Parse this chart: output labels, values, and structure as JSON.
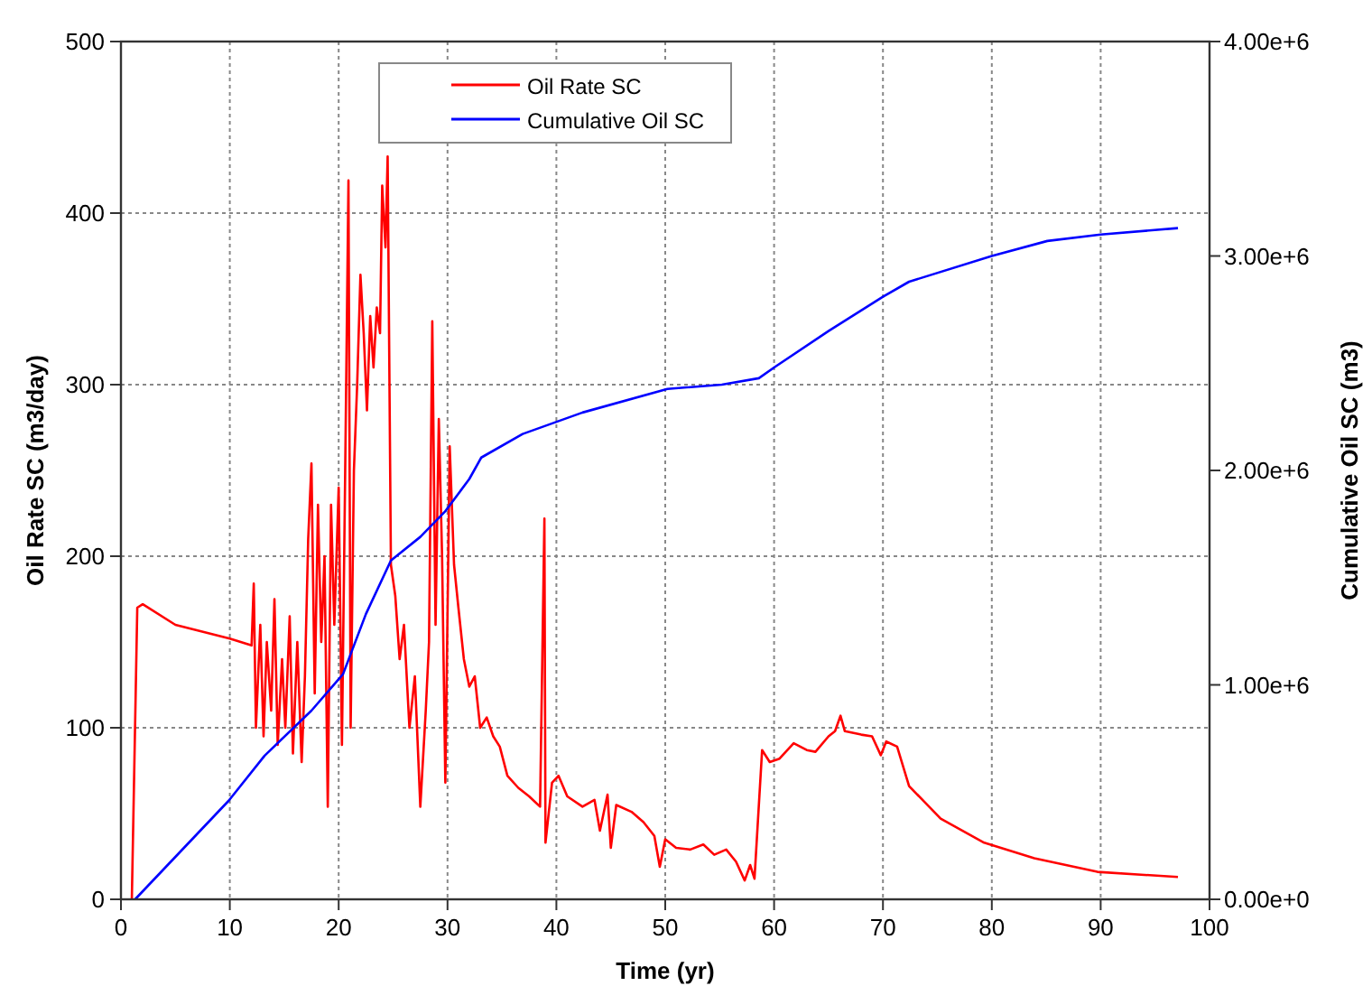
{
  "chart_data": {
    "type": "line",
    "xlabel": "Time (yr)",
    "ylabel": "Oil Rate SC (m3/day)",
    "y2label": "Cumulative Oil SC (m3)",
    "xlim": [
      0,
      100
    ],
    "xticks": [
      0,
      10,
      20,
      30,
      40,
      50,
      60,
      70,
      80,
      90,
      100
    ],
    "ylim": [
      0,
      500
    ],
    "yticks": [
      0,
      100,
      200,
      300,
      400,
      500
    ],
    "y2lim": [
      0,
      4000000
    ],
    "y2ticks": [
      {
        "value": 0,
        "label": "0.00e+0"
      },
      {
        "value": 1000000,
        "label": "1.00e+6"
      },
      {
        "value": 2000000,
        "label": "2.00e+6"
      },
      {
        "value": 3000000,
        "label": "3.00e+6"
      },
      {
        "value": 4000000,
        "label": "4.00e+6"
      }
    ],
    "grid": true,
    "legend": "top",
    "marker": "none",
    "line_style": "solid",
    "series": [
      {
        "name": "Oil Rate SC",
        "color": "#ff0000",
        "x": [
          1,
          1.5,
          2,
          5,
          10,
          12,
          12.2,
          12.4,
          12.8,
          13.1,
          13.4,
          13.8,
          14.1,
          14.4,
          14.8,
          15.1,
          15.5,
          15.8,
          16.2,
          16.6,
          16.9,
          17.2,
          17.5,
          17.8,
          18.1,
          18.4,
          18.7,
          19,
          19.3,
          19.6,
          20,
          20.3,
          20.6,
          20.9,
          21.1,
          21.4,
          21.7,
          22,
          22.3,
          22.6,
          22.9,
          23.2,
          23.5,
          23.8,
          24,
          24.3,
          24.5,
          24.8,
          25.2,
          25.6,
          26,
          26.5,
          27,
          27.5,
          28,
          28.3,
          28.6,
          28.9,
          29.2,
          29.5,
          29.8,
          30.2,
          30.6,
          31,
          31.5,
          32,
          32.5,
          33,
          33.6,
          34.2,
          34.8,
          35.5,
          36.5,
          37.5,
          38.5,
          38.9,
          39,
          39.6,
          40.2,
          41,
          42.4,
          43.5,
          44,
          44.7,
          45,
          45.5,
          46.9,
          48,
          49,
          49.5,
          50,
          51,
          52.3,
          53.5,
          54.5,
          55.6,
          56.5,
          57.3,
          57.8,
          58.2,
          58.9,
          59.6,
          60.5,
          61.8,
          63,
          63.8,
          65,
          65.6,
          66.1,
          66.5,
          68,
          69,
          69.8,
          70.3,
          71.3,
          72.4,
          75.3,
          79.3,
          83.9,
          89.7,
          97.1
        ],
        "values": [
          0,
          170,
          172,
          160,
          152,
          148,
          184,
          100,
          160,
          95,
          150,
          110,
          175,
          90,
          140,
          100,
          165,
          85,
          150,
          80,
          130,
          210,
          254,
          120,
          230,
          150,
          200,
          54,
          230,
          160,
          240,
          90,
          250,
          419,
          100,
          250,
          300,
          364,
          330,
          285,
          340,
          310,
          345,
          330,
          416,
          380,
          433,
          195,
          177,
          140,
          160,
          100,
          130,
          54,
          110,
          150,
          337,
          160,
          280,
          200,
          68,
          264,
          195,
          170,
          140,
          124,
          130,
          100,
          106,
          95,
          89,
          72,
          65,
          60,
          54,
          222,
          33,
          68,
          72,
          60,
          54,
          58,
          40,
          61,
          30,
          55,
          51,
          45,
          37,
          19,
          35,
          30,
          29,
          32,
          26,
          29,
          22,
          11,
          20,
          12,
          87,
          80,
          82,
          91,
          87,
          86,
          95,
          98,
          107,
          98,
          96,
          95,
          84,
          92,
          89,
          66,
          47,
          33,
          24,
          16,
          13
        ]
      },
      {
        "name": "Cumulative Oil SC",
        "color": "#0000ff",
        "axis": "y2",
        "x": [
          1.3,
          9.9,
          13.2,
          17.5,
          20.4,
          22.5,
          24.8,
          27.5,
          29.8,
          32,
          33.1,
          36.9,
          42.4,
          50.2,
          55.2,
          58.6,
          60,
          65,
          70,
          72.4,
          80,
          85.1,
          90,
          97.1
        ],
        "values": [
          0,
          460000,
          670000,
          880000,
          1050000,
          1330000,
          1580000,
          1690000,
          1810000,
          1960000,
          2060000,
          2170000,
          2270000,
          2380000,
          2400000,
          2430000,
          2480000,
          2650000,
          2810000,
          2880000,
          3000000,
          3070000,
          3100000,
          3130000
        ]
      }
    ]
  }
}
